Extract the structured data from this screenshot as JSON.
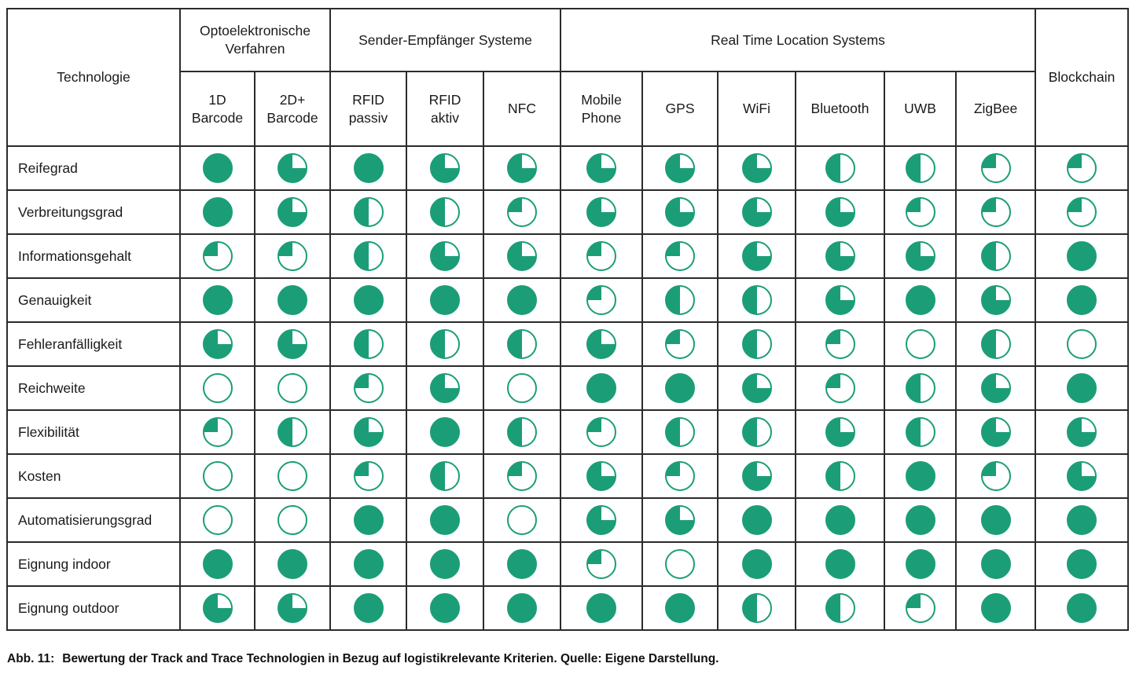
{
  "accent_color": "#1b9e77",
  "chart_data": {
    "type": "table",
    "description": "Harvey-ball rating matrix; values are quarters filled (0=empty circle, 4=full circle)",
    "value_scale": [
      0,
      4
    ],
    "criteria_header": "Technologie",
    "groups": [
      {
        "label": "Optoelektronische\nVerfahren",
        "colspan": 2,
        "rowspan": 1
      },
      {
        "label": "Sender-Empfänger Systeme",
        "colspan": 3,
        "rowspan": 1
      },
      {
        "label": "Real Time Location Systems",
        "colspan": 6,
        "rowspan": 1
      },
      {
        "label": "Blockchain",
        "colspan": 1,
        "rowspan": 2
      }
    ],
    "columns": [
      "1D\nBarcode",
      "2D+\nBarcode",
      "RFID\npassiv",
      "RFID\naktiv",
      "NFC",
      "Mobile\nPhone",
      "GPS",
      "WiFi",
      "Bluetooth",
      "UWB",
      "ZigBee"
    ],
    "all_columns": [
      "1D Barcode",
      "2D+ Barcode",
      "RFID passiv",
      "RFID aktiv",
      "NFC",
      "Mobile Phone",
      "GPS",
      "WiFi",
      "Bluetooth",
      "UWB",
      "ZigBee",
      "Blockchain"
    ],
    "rows": [
      {
        "label": "Reifegrad",
        "values": [
          4,
          3,
          4,
          3,
          3,
          3,
          3,
          3,
          2,
          2,
          1,
          1
        ]
      },
      {
        "label": "Verbreitungsgrad",
        "values": [
          4,
          3,
          2,
          2,
          1,
          3,
          3,
          3,
          3,
          1,
          1,
          1
        ]
      },
      {
        "label": "Informationsgehalt",
        "values": [
          1,
          1,
          2,
          3,
          3,
          1,
          1,
          3,
          3,
          3,
          2,
          4
        ]
      },
      {
        "label": "Genauigkeit",
        "values": [
          4,
          4,
          4,
          4,
          4,
          1,
          2,
          2,
          3,
          4,
          3,
          4
        ]
      },
      {
        "label": "Fehleranfälligkeit",
        "values": [
          3,
          3,
          2,
          2,
          2,
          3,
          1,
          2,
          1,
          0,
          2,
          0
        ]
      },
      {
        "label": "Reichweite",
        "values": [
          0,
          0,
          1,
          3,
          0,
          4,
          4,
          3,
          1,
          2,
          3,
          4
        ]
      },
      {
        "label": "Flexibilität",
        "values": [
          1,
          2,
          3,
          4,
          2,
          1,
          2,
          2,
          3,
          2,
          3,
          3
        ]
      },
      {
        "label": "Kosten",
        "values": [
          0,
          0,
          1,
          2,
          1,
          3,
          1,
          3,
          2,
          4,
          1,
          3
        ]
      },
      {
        "label": "Automatisierungsgrad",
        "values": [
          0,
          0,
          4,
          4,
          0,
          3,
          3,
          4,
          4,
          4,
          4,
          4
        ]
      },
      {
        "label": "Eignung indoor",
        "values": [
          4,
          4,
          4,
          4,
          4,
          1,
          0,
          4,
          4,
          4,
          4,
          4
        ]
      },
      {
        "label": "Eignung outdoor",
        "values": [
          3,
          3,
          4,
          4,
          4,
          4,
          4,
          2,
          2,
          1,
          4,
          4
        ]
      }
    ]
  },
  "caption": {
    "label": "Abb. 11:",
    "text": "Bewertung der Track and Trace Technologien in Bezug auf logistikrelevante Kriterien. Quelle: Eigene Darstellung."
  }
}
